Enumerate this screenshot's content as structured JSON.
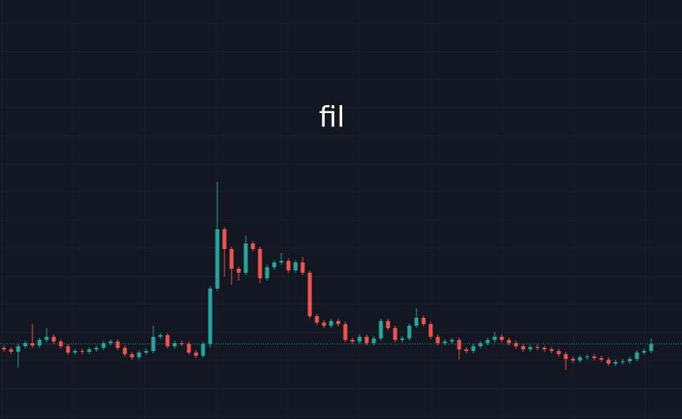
{
  "chart_data": {
    "type": "candlestick",
    "title": "fil",
    "up_color": "#26a69a",
    "down_color": "#ef5350",
    "ylim": [
      0,
      530
    ],
    "open": [
      90,
      88,
      85,
      92,
      96,
      93,
      100,
      104,
      98,
      92,
      84,
      86,
      85,
      88,
      90,
      96,
      98,
      90,
      82,
      78,
      84,
      86,
      104,
      106,
      92,
      96,
      95,
      84,
      80,
      95,
      165,
      240,
      215,
      190,
      185,
      222,
      215,
      178,
      192,
      198,
      200,
      188,
      198,
      185,
      130,
      122,
      118,
      124,
      120,
      100,
      98,
      104,
      96,
      102,
      124,
      115,
      100,
      102,
      118,
      128,
      120,
      104,
      96,
      98,
      100,
      88,
      86,
      92,
      96,
      100,
      104,
      100,
      96,
      92,
      88,
      91,
      90,
      88,
      86,
      82,
      76,
      74,
      78,
      79,
      77,
      75,
      70,
      72,
      73,
      76,
      84,
      86
    ],
    "high": [
      93,
      91,
      95,
      99,
      120,
      103,
      115,
      107,
      101,
      95,
      89,
      89,
      91,
      93,
      99,
      101,
      101,
      93,
      85,
      87,
      89,
      118,
      109,
      109,
      99,
      99,
      98,
      87,
      98,
      168,
      300,
      243,
      218,
      193,
      232,
      225,
      218,
      195,
      201,
      210,
      203,
      201,
      205,
      188,
      133,
      125,
      127,
      127,
      123,
      103,
      107,
      107,
      105,
      127,
      127,
      118,
      105,
      121,
      140,
      131,
      123,
      107,
      101,
      103,
      103,
      91,
      95,
      99,
      103,
      110,
      107,
      103,
      99,
      95,
      94,
      94,
      93,
      91,
      89,
      85,
      79,
      81,
      82,
      82,
      80,
      78,
      75,
      76,
      79,
      87,
      89,
      102
    ],
    "low": [
      85,
      82,
      65,
      89,
      90,
      90,
      97,
      95,
      89,
      81,
      81,
      82,
      82,
      85,
      87,
      93,
      87,
      79,
      75,
      75,
      81,
      83,
      101,
      89,
      89,
      92,
      81,
      77,
      77,
      90,
      162,
      180,
      170,
      175,
      182,
      212,
      172,
      175,
      189,
      195,
      185,
      185,
      182,
      127,
      119,
      115,
      115,
      117,
      97,
      95,
      95,
      93,
      93,
      99,
      112,
      97,
      97,
      99,
      115,
      117,
      101,
      93,
      93,
      95,
      75,
      83,
      83,
      89,
      93,
      97,
      97,
      93,
      89,
      85,
      85,
      87,
      85,
      83,
      79,
      62,
      71,
      71,
      75,
      74,
      72,
      67,
      67,
      69,
      70,
      73,
      81,
      83
    ],
    "close": [
      88,
      85,
      92,
      96,
      93,
      100,
      104,
      98,
      92,
      84,
      86,
      85,
      88,
      90,
      96,
      98,
      90,
      82,
      78,
      84,
      86,
      104,
      106,
      92,
      96,
      95,
      84,
      80,
      95,
      165,
      240,
      215,
      190,
      185,
      222,
      215,
      178,
      192,
      198,
      200,
      188,
      198,
      185,
      130,
      122,
      118,
      124,
      120,
      100,
      98,
      104,
      96,
      102,
      124,
      115,
      100,
      102,
      118,
      128,
      120,
      104,
      96,
      98,
      100,
      88,
      86,
      92,
      96,
      100,
      104,
      100,
      96,
      92,
      88,
      91,
      90,
      88,
      86,
      82,
      76,
      74,
      78,
      79,
      77,
      75,
      70,
      72,
      73,
      76,
      84,
      86,
      95
    ]
  }
}
